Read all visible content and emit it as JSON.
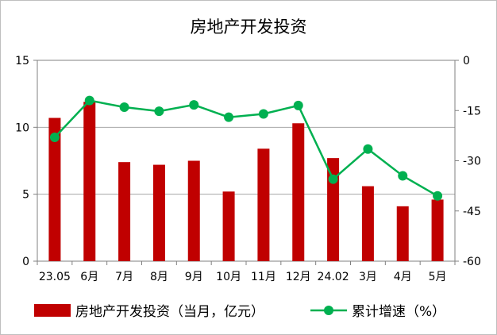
{
  "chart_data": {
    "type": "bar+line",
    "title": "房地产开发投资",
    "categories": [
      "23.05",
      "6月",
      "7月",
      "8月",
      "9月",
      "10月",
      "11月",
      "12月",
      "24.02",
      "3月",
      "4月",
      "5月"
    ],
    "series": [
      {
        "name": "房地产开发投资（当月，亿元）",
        "type": "bar",
        "axis": "left",
        "color": "#c00000",
        "values": [
          10.7,
          11.9,
          7.4,
          7.2,
          7.5,
          5.2,
          8.4,
          10.3,
          7.7,
          5.6,
          4.1,
          4.6
        ]
      },
      {
        "name": "累计增速（%）",
        "type": "line",
        "axis": "right",
        "color": "#00b050",
        "values": [
          -23,
          -12,
          -14,
          -15.2,
          -13.3,
          -17,
          -16,
          -13.5,
          -35.5,
          -26.5,
          -34.5,
          -40.5
        ]
      }
    ],
    "y_left": {
      "ylim": [
        0,
        15
      ],
      "ticks": [
        "0",
        "5",
        "10",
        "15"
      ]
    },
    "y_right": {
      "ylim": [
        -60,
        0
      ],
      "ticks": [
        "-60",
        "-45",
        "-30",
        "-15",
        "0"
      ]
    },
    "grid": true,
    "legend_position": "bottom"
  }
}
